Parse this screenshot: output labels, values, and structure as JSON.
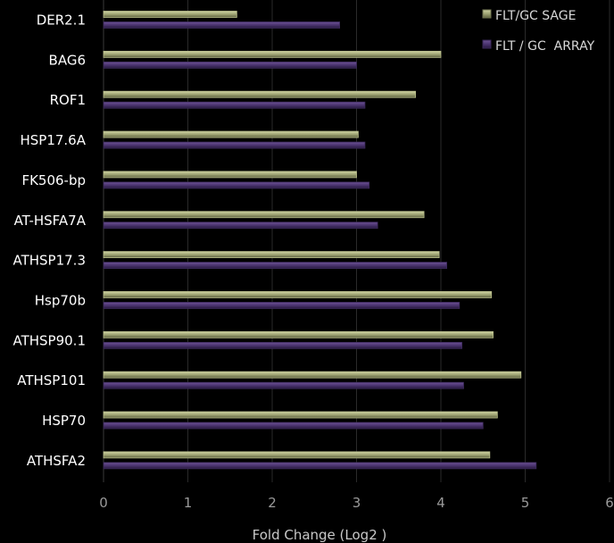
{
  "chart_data": {
    "type": "bar",
    "orientation": "horizontal",
    "categories": [
      "DER2.1",
      "BAG6",
      "ROF1",
      "HSP17.6A",
      "FK506-bp",
      "AT-HSFA7A",
      "ATHSP17.3",
      "Hsp70b",
      "ATHSP90.1",
      "ATHSP101",
      "HSP70",
      "ATHSFA2"
    ],
    "series": [
      {
        "name": "FLT/GC SAGE",
        "color": "#9ea373",
        "values": [
          1.58,
          4.0,
          3.7,
          3.02,
          3.0,
          3.8,
          3.98,
          4.6,
          4.62,
          4.95,
          4.67,
          4.58
        ]
      },
      {
        "name": "FLT / GC  ARRAY",
        "color": "#4b3470",
        "values": [
          2.8,
          3.0,
          3.1,
          3.1,
          3.15,
          3.25,
          4.07,
          4.22,
          4.25,
          4.27,
          4.5,
          5.13
        ]
      }
    ],
    "xlabel": "Fold Change (Log2 )",
    "xlim": [
      0,
      6
    ],
    "xticks": [
      "0",
      "1",
      "2",
      "3",
      "4",
      "5",
      "6"
    ],
    "legend_position": "top-right",
    "grid": true
  }
}
